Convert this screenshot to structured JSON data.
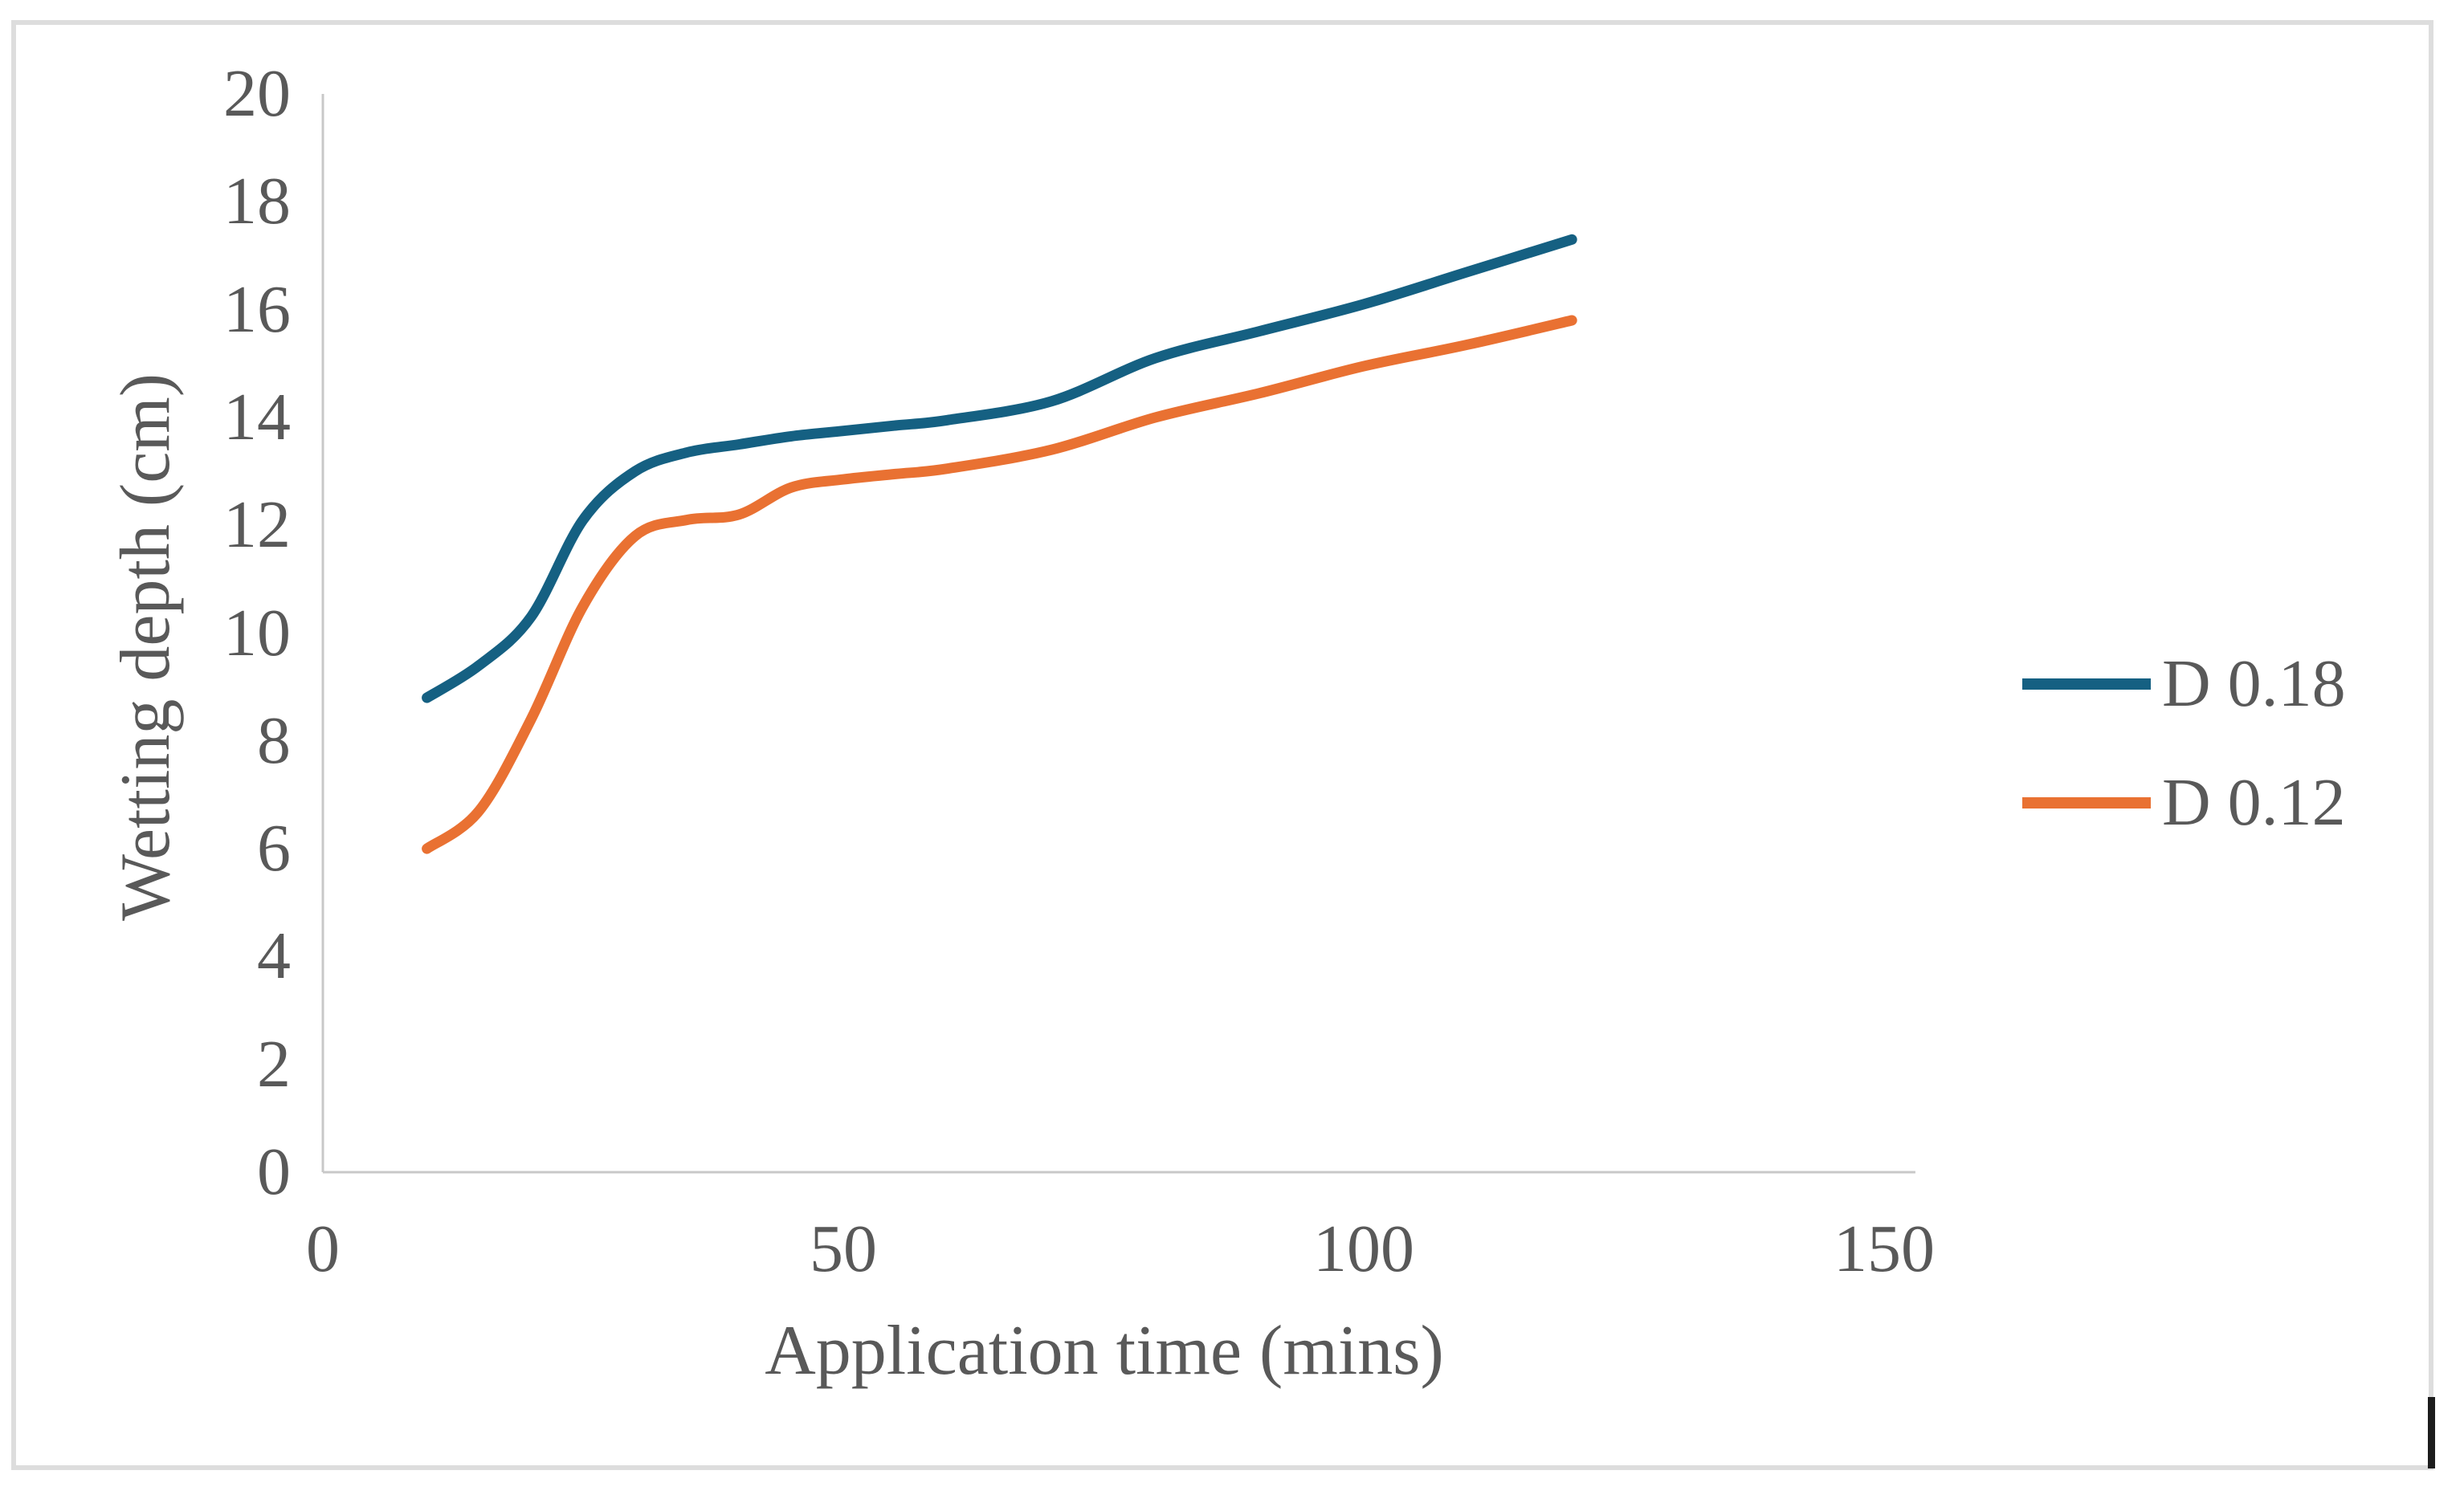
{
  "chart_data": {
    "type": "line",
    "title": "",
    "xlabel": "Application time (mins)",
    "ylabel": "Wetting depth (cm)",
    "x": [
      10,
      15,
      20,
      25,
      30,
      35,
      40,
      45,
      50,
      55,
      60,
      70,
      80,
      90,
      100,
      110,
      120
    ],
    "series": [
      {
        "name": "D 0.18",
        "color": "#156082",
        "values": [
          8.8,
          9.4,
          10.3,
          12.1,
          13.0,
          13.35,
          13.5,
          13.65,
          13.75,
          13.85,
          13.95,
          14.3,
          15.1,
          15.6,
          16.1,
          16.7,
          17.3
        ]
      },
      {
        "name": "D 0.12",
        "color": "#E97132",
        "values": [
          6.0,
          6.7,
          8.4,
          10.5,
          11.8,
          12.1,
          12.2,
          12.7,
          12.85,
          12.95,
          13.05,
          13.4,
          14.0,
          14.45,
          14.95,
          15.35,
          15.8
        ]
      }
    ],
    "x_ticks": [
      0,
      50,
      100,
      150
    ],
    "y_ticks": [
      0,
      2,
      4,
      6,
      8,
      10,
      12,
      14,
      16,
      18,
      20
    ],
    "xlim": [
      0,
      153
    ],
    "ylim": [
      0,
      20
    ],
    "grid": false,
    "legend_position": "right",
    "line_style": "smooth"
  },
  "style": {
    "series1_color": "#156082",
    "series2_color": "#E97132",
    "axis_line_color": "#c8c8c8",
    "label_color": "#595959",
    "border_color": "#dddddd",
    "background": "#ffffff"
  }
}
